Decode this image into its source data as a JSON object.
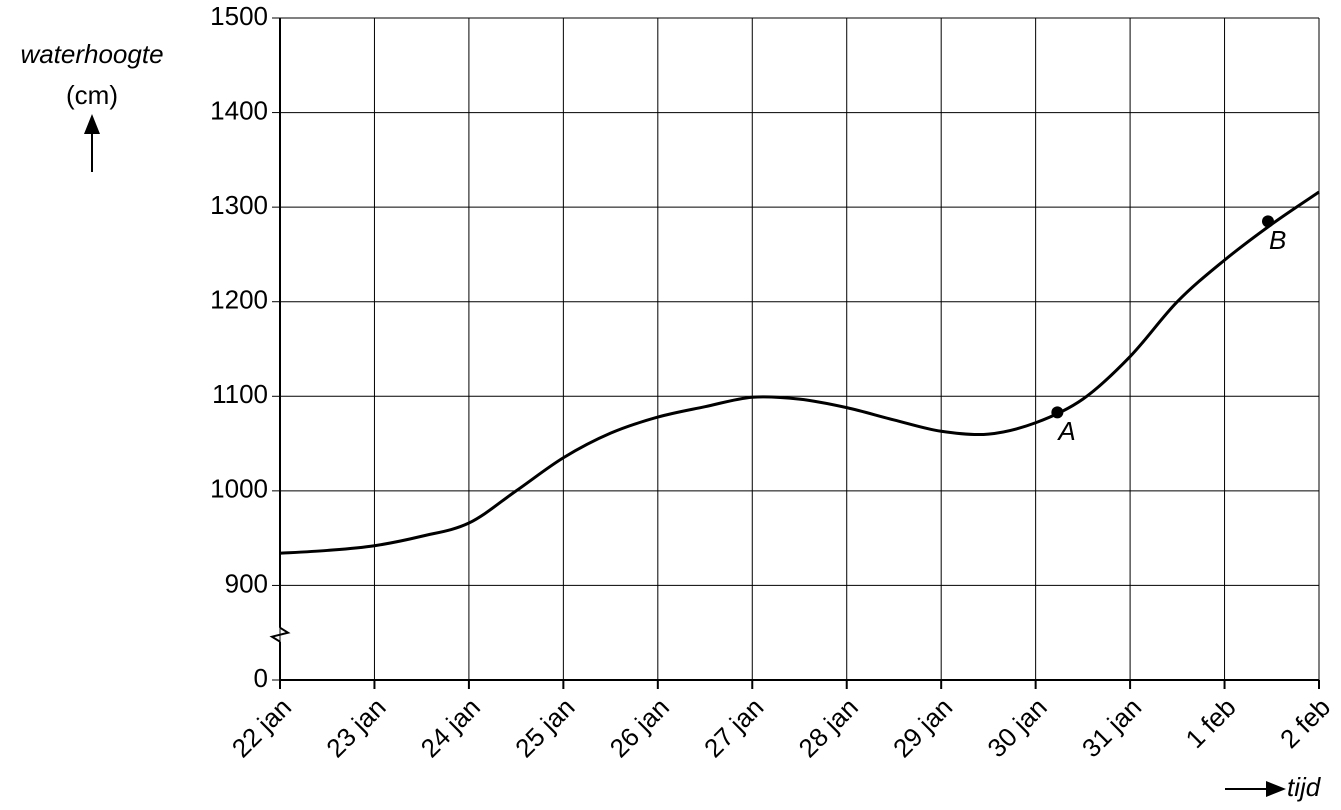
{
  "chart_data": {
    "type": "line",
    "ylabel": "waterhoogte",
    "yunit": "(cm)",
    "xlabel": "tijd",
    "xlim": [
      0,
      11
    ],
    "xticks": [
      {
        "value": 0,
        "label": "22 jan"
      },
      {
        "value": 1,
        "label": "23 jan"
      },
      {
        "value": 2,
        "label": "24 jan"
      },
      {
        "value": 3,
        "label": "25 jan"
      },
      {
        "value": 4,
        "label": "26 jan"
      },
      {
        "value": 5,
        "label": "27 jan"
      },
      {
        "value": 6,
        "label": "28 jan"
      },
      {
        "value": 7,
        "label": "29 jan"
      },
      {
        "value": 8,
        "label": "30 jan"
      },
      {
        "value": 9,
        "label": "31 jan"
      },
      {
        "value": 10,
        "label": "1 feb"
      },
      {
        "value": 11,
        "label": "2 feb"
      }
    ],
    "ylim": [
      0,
      1500
    ],
    "yticks": [
      0,
      900,
      1000,
      1100,
      1200,
      1300,
      1400,
      1500
    ],
    "axis_break": [
      0,
      900
    ],
    "grid": true,
    "color": "#000000",
    "x": [
      0,
      0.5,
      1,
      1.5,
      2,
      2.5,
      3,
      3.5,
      4,
      4.5,
      5,
      5.5,
      6,
      6.5,
      7,
      7.5,
      8,
      8.5,
      9,
      9.5,
      10,
      10.5,
      11
    ],
    "values": [
      934,
      937,
      942,
      952,
      966,
      1000,
      1035,
      1061,
      1078,
      1089,
      1099,
      1097,
      1088,
      1075,
      1063,
      1060,
      1072,
      1097,
      1142,
      1200,
      1244,
      1282,
      1316
    ],
    "points": [
      {
        "label": "A",
        "x": 8.23,
        "value": 1083
      },
      {
        "label": "B",
        "x": 10.46,
        "value": 1285
      }
    ]
  }
}
